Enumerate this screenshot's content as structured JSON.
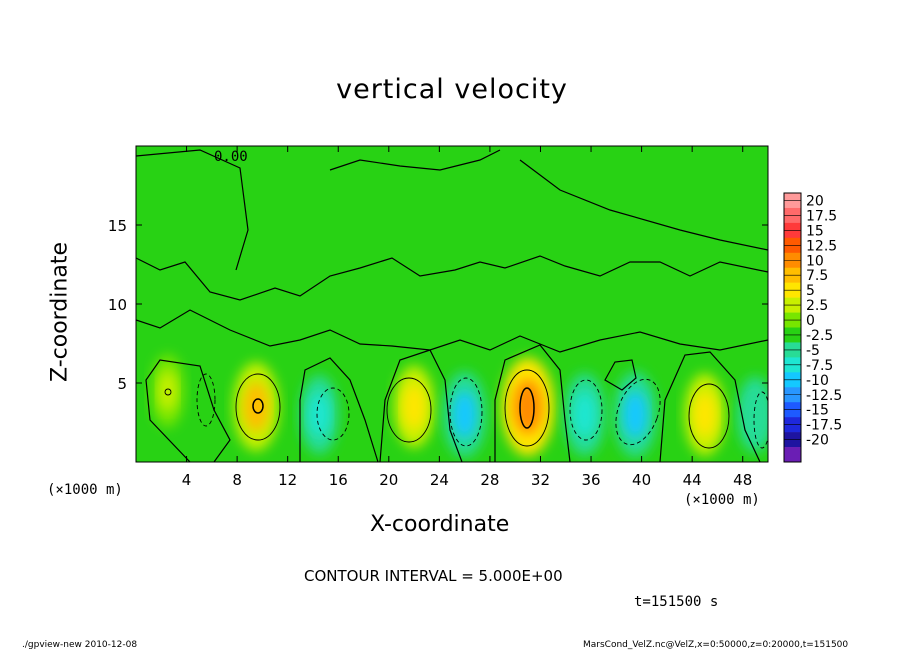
{
  "chart_data": {
    "type": "heatmap",
    "title": "vertical velocity",
    "xlabel": "X-coordinate",
    "ylabel": "Z-coordinate",
    "x_unit_left": "(×1000 m)",
    "x_unit_right": "(×1000 m)",
    "xlim": [
      0,
      50
    ],
    "ylim": [
      0,
      20
    ],
    "x_ticks": [
      4,
      8,
      12,
      16,
      20,
      24,
      28,
      32,
      36,
      40,
      44,
      48
    ],
    "y_ticks": [
      5,
      10,
      15
    ],
    "contour_label": "0.00",
    "colorbar_levels": [
      "20",
      "17.5",
      "15",
      "12.5",
      "10",
      "7.5",
      "5",
      "2.5",
      "0",
      "-2.5",
      "-5",
      "-7.5",
      "-10",
      "-12.5",
      "-15",
      "-17.5",
      "-20"
    ],
    "colorbar_colors": [
      "#ff9a9a",
      "#ff6a6a",
      "#ff3a3a",
      "#ff5a00",
      "#ff8c00",
      "#ffbe00",
      "#ffe600",
      "#c8f000",
      "#78e600",
      "#28d214",
      "#28dc96",
      "#1ee6d2",
      "#14c8ff",
      "#2896ff",
      "#1e5aff",
      "#1e28dc",
      "#1e14a0",
      "#6a1eb4"
    ],
    "features": [
      {
        "x": 2.5,
        "z": 4.5,
        "value": 4
      },
      {
        "x": 9.5,
        "z": 3.5,
        "value": 9
      },
      {
        "x": 14.5,
        "z": 3,
        "value": -6
      },
      {
        "x": 22,
        "z": 3.5,
        "value": 7
      },
      {
        "x": 26,
        "z": 3,
        "value": -8
      },
      {
        "x": 31,
        "z": 3.5,
        "value": 12
      },
      {
        "x": 35.5,
        "z": 3,
        "value": -7
      },
      {
        "x": 39.5,
        "z": 3,
        "value": -8
      },
      {
        "x": 45,
        "z": 3,
        "value": 7
      },
      {
        "x": 49,
        "z": 3,
        "value": -5
      }
    ],
    "grid": false,
    "colorbar": "right"
  },
  "contour_interval": "CONTOUR INTERVAL = 5.000E+00",
  "time_label": "t=151500 s",
  "footer_left": "./gpview-new  2010-12-08",
  "footer_right": "MarsCond_VelZ.nc@VelZ,x=0:50000,z=0:20000,t=151500"
}
